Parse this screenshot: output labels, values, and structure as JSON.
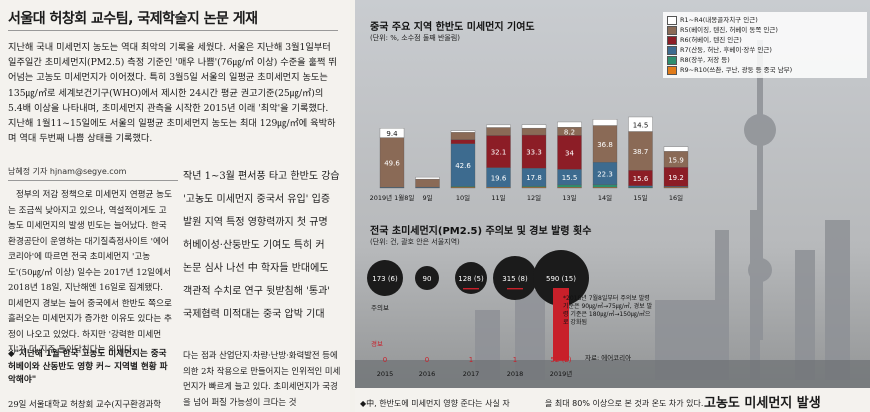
{
  "headline": "서울대 허창회 교수팀, 국제학술지 논문 게재",
  "lead": "지난해 국내 미세먼지 농도는 역대 최악의 기록을 세웠다. 서울은 지난해 3월1일부터 일주일간 초미세먼지(PM2.5) 측정 기준인 '매우 나쁨'(76㎍/㎥ 이상) 수준을 훌쩍 뛰어넘는 고농도 미세먼지가 이어졌다. 특히 3월5일 서울의 일평균 초미세먼지 농도는 135㎍/㎥로 세계보건기구(WHO)에서 제시한 24시간 평균 권고기준(25㎍/㎥)의 5.4배 이상을 나타내며, 초미세먼지 관측을 시작한 2015년 이래 '최악'을 기록했다. 지난해 1월11~15일에도 서울의 일평균 초미세먼지 농도는 최대 129㎍/㎥에 육박하며 역대 두번째 나쁨 상태를 기록했다.",
  "byline": "남혜정 기자 hjnam@segye.com",
  "col1": [
    "정부의 저감 정책으로 미세먼지 연평균 농도는 조금씩 낮아지고 있으나, 역설적이게도 고농도 미세먼지의 발생 빈도는 늘어났다. 한국환경공단이 운영하는 대기질측정사이트 '에어코리아'에 따르면 전국 초미세먼지 '고농도'(50㎍/㎥ 이상) 일수는 2017년 12일에서 2018년 18일, 지난해엔 16일로 집계됐다. 미세먼지 경보는 늘어 중국에서 한반도 쪽으로 흘러오는 미세먼지가 증가한 이유도 있다는 추정이 나오고 있었다. 하지만 '강력한 미세먼지'가 더 지주 들이닥친다는 의미다."
  ],
  "bullet": "◆\"지난해 1월 한국 고농도 미세먼지는 중국 허베이와 산동반도 영향 커~ 지역별 현황 파악해야\"",
  "col1_bottom": "29일 서울대학교 허창회 교수(지구환경과학",
  "subheads": [
    "작년 1~3월 편서풍 타고 한반도 강습",
    "'고농도 미세먼지 중국서 유입' 입증",
    "발원 지역 특정 영향력까지 첫 규명",
    "허베이성·산둥반도 기여도 특히 커",
    "논문 심사 나선 中 학자들 반대에도",
    "객관적 수치로 연구 뒷받침해 '통과'",
    "국제협력 미적대는 중국 압박 기대"
  ],
  "col2": "다는 점과 산업단지·차량·난방·화력발전 등에 의한 2차 작용으로 만들어지는 인위적인 미세먼지가 빠르게 늘고 있다. 초미세먼지가 국경을 넘어 퍼질 가능성이 크다는 것",
  "chart1": {
    "title": "중국 주요 지역 한반도 미세먼지 기여도",
    "subtitle": "(단위: %, 소수점 둘째 반올림)",
    "categories": [
      "2019년 1월8일",
      "9일",
      "10일",
      "11일",
      "12일",
      "13일",
      "14일",
      "15일",
      "16일"
    ],
    "legend": [
      {
        "label": "R1~R4(내몽골자치구 인근)",
        "color": "#ffffff"
      },
      {
        "label": "R5(베이징, 톈진, 허베이 동쪽 인근)",
        "color": "#8a6a56"
      },
      {
        "label": "R6(허베이, 텐진 인근)",
        "color": "#8c1d26"
      },
      {
        "label": "R7(산둥, 허난, 후베이·장쑤 인근)",
        "color": "#3d6b8f"
      },
      {
        "label": "R8(장쑤, 저장 등)",
        "color": "#2e8e6e"
      },
      {
        "label": "R9~R10(쓰촨, 쿠난, 광둥 등 중국 남부)",
        "color": "#e07b1a"
      }
    ],
    "series": [
      {
        "name": "R1~R4",
        "values": [
          9.4,
          2.0,
          1.6,
          2.6,
          3.4,
          5.2,
          6.2,
          14.5,
          4.5
        ]
      },
      {
        "name": "R5",
        "values": [
          49.6,
          8.0,
          7.3,
          8.0,
          6.9,
          8.2,
          36.8,
          38.7,
          15.9
        ]
      },
      {
        "name": "R6",
        "values": [
          0.0,
          0.0,
          4.2,
          32.1,
          33.3,
          34.0,
          null,
          15.6,
          19.2
        ]
      },
      {
        "name": "R7",
        "values": [
          0.5,
          0.9,
          42.6,
          19.6,
          17.8,
          15.5,
          22.3,
          1.4,
          0.1
        ]
      },
      {
        "name": "R8",
        "values": [
          0.0,
          0.0,
          0.2,
          0.0,
          1.0,
          2.3,
          2.6,
          0.1,
          0.0
        ]
      },
      {
        "name": "R9~R10",
        "values": [
          0.0,
          0.0,
          0.1,
          0.2,
          0.9,
          0.3,
          0.2,
          0.0,
          0.1
        ]
      }
    ]
  },
  "chart2": {
    "title": "전국 초미세먼지(PM2.5) 주의보 및 경보 발령 횟수",
    "subtitle": "(단위: 건, 괄호 안은 서울지역)",
    "years": [
      "2015",
      "2016",
      "2017",
      "2018",
      "2019년"
    ],
    "advisory": [
      "173 (6)",
      "90",
      "128 (5)",
      "315 (8)",
      "590 (15)"
    ],
    "alert": [
      "0",
      "0",
      "1",
      "1",
      "52 (2)"
    ],
    "advisory_label": "주의보",
    "alert_label": "경보",
    "note": "*2018년 7월8일부터 주의보 발령 기준은 90㎍/㎥→75㎍/㎥, 경보 발령 기준은 180㎍/㎥→150㎍/㎥으로 강화됨",
    "source": "자료: 에어코리아"
  },
  "photo_caption": "◆中, 한반도에 미세먼지 영향 준다는 사실 자",
  "photo_caption2": "을 최대 80% 이상으로 본 것과 온도 차가 있다.",
  "kicker": "고농도 미세먼지 발생"
}
